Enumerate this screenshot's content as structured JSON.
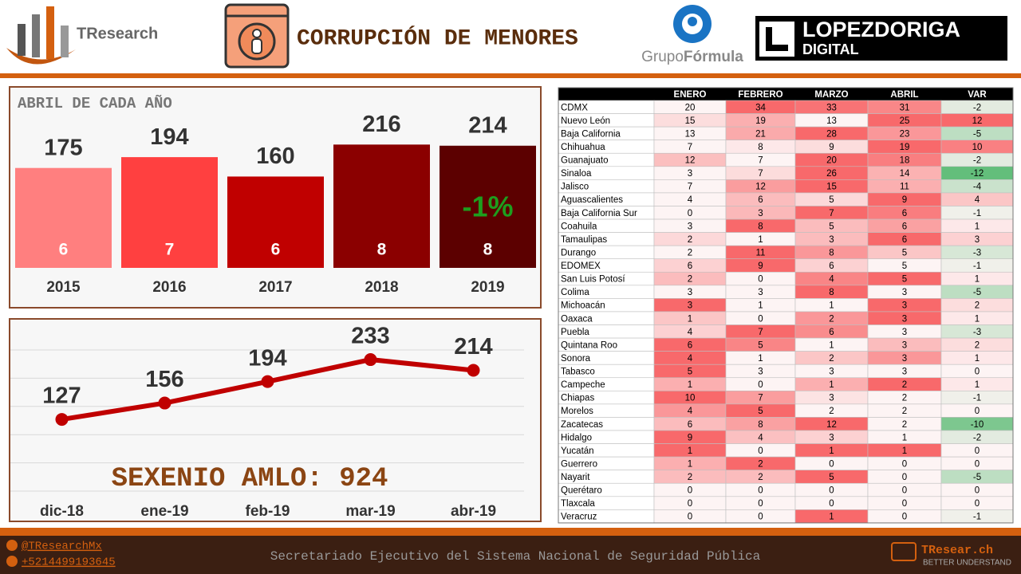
{
  "header": {
    "brand": "TResearch",
    "title": "CORRUPCIÓN DE MENORES",
    "partner_1a": "Grupo",
    "partner_1b": "Fórmula",
    "partner_2a": "LOPEZDORIGA",
    "partner_2b": "DIGITAL"
  },
  "chart_data": [
    {
      "type": "bar",
      "title": "ABRIL DE CADA AÑO",
      "categories": [
        "2015",
        "2016",
        "2017",
        "2018",
        "2019"
      ],
      "values": [
        175,
        194,
        160,
        216,
        214
      ],
      "bar_labels": [
        6,
        7,
        6,
        8,
        8
      ],
      "colors": [
        "#ff7f7f",
        "#ff4040",
        "#c00000",
        "#8b0000",
        "#5c0000"
      ],
      "annotation": "-1%",
      "annotation_color": "#1e9e1e",
      "ylim": [
        0,
        250
      ]
    },
    {
      "type": "line",
      "title": "SEXENIO AMLO: 924",
      "categories": [
        "dic-18",
        "ene-19",
        "feb-19",
        "mar-19",
        "abr-19"
      ],
      "values": [
        127,
        156,
        194,
        233,
        214
      ],
      "color": "#c00000",
      "ylim": [
        0,
        250
      ],
      "yticks": [
        0,
        50,
        100,
        150,
        200,
        250
      ],
      "grid": true
    }
  ],
  "table": {
    "columns": [
      "ENERO",
      "FEBRERO",
      "MARZO",
      "ABRIL",
      "VAR"
    ],
    "rows": [
      [
        "CDMX",
        20,
        34,
        33,
        31,
        -2
      ],
      [
        "Nuevo León",
        15,
        19,
        13,
        25,
        12
      ],
      [
        "Baja California",
        13,
        21,
        28,
        23,
        -5
      ],
      [
        "Chihuahua",
        7,
        8,
        9,
        19,
        10
      ],
      [
        "Guanajuato",
        12,
        7,
        20,
        18,
        -2
      ],
      [
        "Sinaloa",
        3,
        7,
        26,
        14,
        -12
      ],
      [
        "Jalisco",
        7,
        12,
        15,
        11,
        -4
      ],
      [
        "Aguascalientes",
        4,
        6,
        5,
        9,
        4
      ],
      [
        "Baja California Sur",
        0,
        3,
        7,
        6,
        -1
      ],
      [
        "Coahuila",
        3,
        8,
        5,
        6,
        1
      ],
      [
        "Tamaulipas",
        2,
        1,
        3,
        6,
        3
      ],
      [
        "Durango",
        2,
        11,
        8,
        5,
        -3
      ],
      [
        "EDOMEX",
        6,
        9,
        6,
        5,
        -1
      ],
      [
        "San Luis Potosí",
        2,
        0,
        4,
        5,
        1
      ],
      [
        "Colima",
        3,
        3,
        8,
        3,
        -5
      ],
      [
        "Michoacán",
        3,
        1,
        1,
        3,
        2
      ],
      [
        "Oaxaca",
        1,
        0,
        2,
        3,
        1
      ],
      [
        "Puebla",
        4,
        7,
        6,
        3,
        -3
      ],
      [
        "Quintana Roo",
        6,
        5,
        1,
        3,
        2
      ],
      [
        "Sonora",
        4,
        1,
        2,
        3,
        1
      ],
      [
        "Tabasco",
        5,
        3,
        3,
        3,
        0
      ],
      [
        "Campeche",
        1,
        0,
        1,
        2,
        1
      ],
      [
        "Chiapas",
        10,
        7,
        3,
        2,
        -1
      ],
      [
        "Morelos",
        4,
        5,
        2,
        2,
        0
      ],
      [
        "Zacatecas",
        6,
        8,
        12,
        2,
        -10
      ],
      [
        "Hidalgo",
        9,
        4,
        3,
        1,
        -2
      ],
      [
        "Yucatán",
        1,
        0,
        1,
        1,
        0
      ],
      [
        "Guerrero",
        1,
        2,
        0,
        0,
        0
      ],
      [
        "Nayarit",
        2,
        2,
        5,
        0,
        -5
      ],
      [
        "Querétaro",
        0,
        0,
        0,
        0,
        0
      ],
      [
        "Tlaxcala",
        0,
        0,
        0,
        0,
        0
      ],
      [
        "Veracruz",
        0,
        0,
        1,
        0,
        -1
      ]
    ]
  },
  "footer": {
    "twitter": "@TResearchMx",
    "phone": "+5214499193645",
    "source": "Secretariado Ejecutivo del Sistema Nacional de Seguridad Pública",
    "site": "TResear.ch",
    "tagline": "BETTER UNDERSTAND"
  }
}
